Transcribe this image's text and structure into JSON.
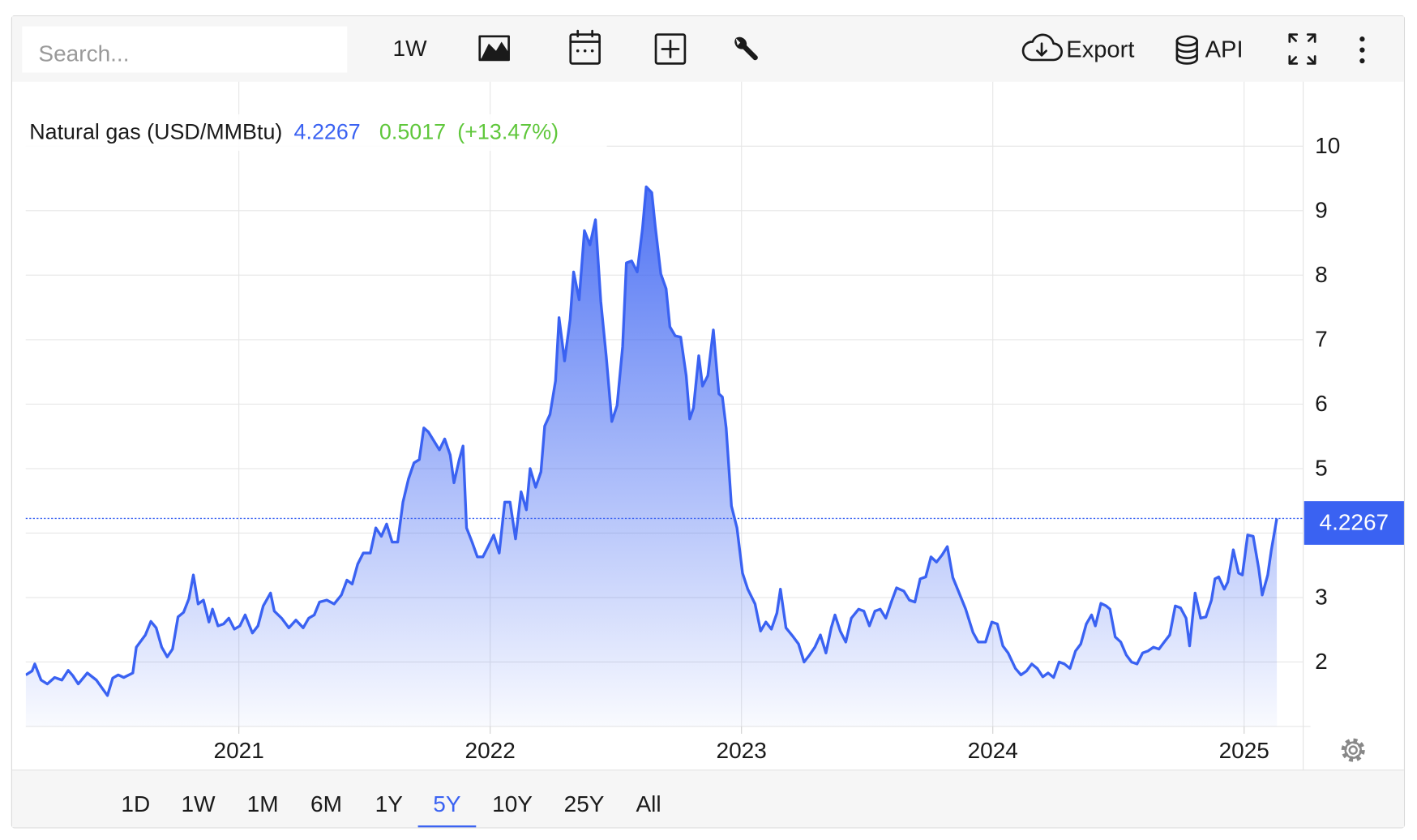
{
  "toolbar": {
    "search_placeholder": "Search...",
    "interval": "1W",
    "export": "Export",
    "api": "API"
  },
  "range_bar": {
    "ranges": [
      "1D",
      "1W",
      "1M",
      "6M",
      "1Y",
      "5Y",
      "10Y",
      "25Y",
      "All"
    ],
    "active_range": "5Y"
  },
  "chart_data": {
    "type": "area",
    "series": [
      {
        "name": "Natural gas (USD/MMBtu)",
        "color": "#3a62f2",
        "x": [
          2020.152,
          2020.177,
          2020.188,
          2020.213,
          2020.238,
          2020.267,
          2020.296,
          2020.321,
          2020.339,
          2020.361,
          2020.397,
          2020.433,
          2020.477,
          2020.498,
          2020.52,
          2020.542,
          2020.578,
          2020.592,
          2020.628,
          2020.65,
          2020.671,
          2020.693,
          2020.715,
          2020.736,
          2020.758,
          2020.78,
          2020.801,
          2020.819,
          2020.838,
          2020.859,
          2020.881,
          2020.895,
          2020.917,
          2020.939,
          2020.96,
          2020.982,
          2021.004,
          2021.025,
          2021.054,
          2021.076,
          2021.097,
          2021.126,
          2021.141,
          2021.17,
          2021.199,
          2021.227,
          2021.256,
          2021.278,
          2021.3,
          2021.321,
          2021.35,
          2021.379,
          2021.408,
          2021.43,
          2021.451,
          2021.473,
          2021.495,
          2021.523,
          2021.545,
          2021.567,
          2021.588,
          2021.61,
          2021.632,
          2021.653,
          2021.675,
          2021.697,
          2021.718,
          2021.736,
          2021.754,
          2021.776,
          2021.798,
          2021.819,
          2021.841,
          2021.856,
          2021.877,
          2021.892,
          2021.906,
          2021.928,
          2021.949,
          2021.971,
          2021.993,
          2022.014,
          2022.036,
          2022.058,
          2022.079,
          2022.101,
          2022.123,
          2022.144,
          2022.159,
          2022.181,
          2022.202,
          2022.217,
          2022.238,
          2022.26,
          2022.274,
          2022.296,
          2022.318,
          2022.332,
          2022.354,
          2022.375,
          2022.397,
          2022.419,
          2022.44,
          2022.462,
          2022.484,
          2022.505,
          2022.527,
          2022.542,
          2022.563,
          2022.585,
          2022.606,
          2022.621,
          2022.643,
          2022.657,
          2022.679,
          2022.7,
          2022.715,
          2022.736,
          2022.758,
          2022.78,
          2022.794,
          2022.809,
          2022.83,
          2022.845,
          2022.866,
          2022.888,
          2022.91,
          2022.924,
          2022.939,
          2022.96,
          2022.982,
          2023.004,
          2023.025,
          2023.054,
          2023.076,
          2023.097,
          2023.119,
          2023.141,
          2023.155,
          2023.177,
          2023.206,
          2023.227,
          2023.249,
          2023.271,
          2023.292,
          2023.314,
          2023.336,
          2023.357,
          2023.372,
          2023.393,
          2023.415,
          2023.437,
          2023.466,
          2023.487,
          2023.509,
          2023.531,
          2023.552,
          2023.574,
          2023.596,
          2023.617,
          2023.646,
          2023.668,
          2023.69,
          2023.711,
          2023.733,
          2023.754,
          2023.776,
          2023.798,
          2023.819,
          2023.841,
          2023.863,
          2023.892,
          2023.921,
          2023.942,
          2023.971,
          2023.996,
          2024.018,
          2024.04,
          2024.061,
          2024.09,
          2024.112,
          2024.134,
          2024.155,
          2024.177,
          2024.199,
          2024.22,
          2024.242,
          2024.264,
          2024.285,
          2024.307,
          2024.329,
          2024.35,
          2024.372,
          2024.393,
          2024.408,
          2024.43,
          2024.451,
          2024.466,
          2024.487,
          2024.509,
          2024.531,
          2024.552,
          2024.574,
          2024.596,
          2024.617,
          2024.639,
          2024.661,
          2024.682,
          2024.704,
          2024.726,
          2024.747,
          2024.769,
          2024.783,
          2024.805,
          2024.827,
          2024.848,
          2024.87,
          2024.884,
          2024.899,
          2024.921,
          2024.935,
          2024.957,
          2024.978,
          2024.993,
          2025.014,
          2025.036,
          2025.058,
          2025.072,
          2025.094,
          2025.108,
          2025.13
        ],
        "values": [
          1.8,
          1.86,
          1.97,
          1.72,
          1.66,
          1.76,
          1.72,
          1.87,
          1.79,
          1.66,
          1.83,
          1.72,
          1.48,
          1.75,
          1.8,
          1.76,
          1.83,
          2.23,
          2.42,
          2.63,
          2.53,
          2.23,
          2.08,
          2.2,
          2.7,
          2.77,
          2.98,
          3.35,
          2.9,
          2.96,
          2.62,
          2.82,
          2.56,
          2.59,
          2.68,
          2.51,
          2.56,
          2.73,
          2.45,
          2.56,
          2.87,
          3.07,
          2.79,
          2.68,
          2.53,
          2.65,
          2.53,
          2.68,
          2.73,
          2.93,
          2.96,
          2.9,
          3.04,
          3.27,
          3.21,
          3.52,
          3.69,
          3.69,
          4.08,
          3.95,
          4.14,
          3.86,
          3.86,
          4.48,
          4.84,
          5.09,
          5.14,
          5.63,
          5.57,
          5.43,
          5.29,
          5.46,
          5.21,
          4.78,
          5.14,
          5.35,
          4.08,
          3.86,
          3.63,
          3.63,
          3.8,
          3.97,
          3.69,
          4.48,
          4.48,
          3.91,
          4.64,
          4.36,
          5.0,
          4.71,
          4.95,
          5.66,
          5.84,
          6.36,
          7.34,
          6.67,
          7.31,
          8.05,
          7.62,
          8.69,
          8.47,
          8.86,
          7.6,
          6.73,
          5.73,
          5.98,
          6.89,
          8.19,
          8.22,
          8.05,
          8.72,
          9.37,
          9.28,
          8.75,
          8.02,
          7.79,
          7.2,
          7.06,
          7.04,
          6.44,
          5.77,
          5.94,
          6.75,
          6.28,
          6.44,
          7.15,
          6.16,
          6.11,
          5.63,
          4.42,
          4.08,
          3.38,
          3.13,
          2.9,
          2.48,
          2.62,
          2.51,
          2.76,
          3.13,
          2.53,
          2.39,
          2.28,
          2.0,
          2.11,
          2.23,
          2.42,
          2.14,
          2.53,
          2.73,
          2.48,
          2.31,
          2.68,
          2.82,
          2.79,
          2.56,
          2.79,
          2.82,
          2.68,
          2.93,
          3.15,
          3.1,
          2.96,
          2.93,
          3.29,
          3.32,
          3.63,
          3.55,
          3.66,
          3.79,
          3.31,
          3.1,
          2.82,
          2.46,
          2.31,
          2.31,
          2.62,
          2.59,
          2.25,
          2.14,
          1.9,
          1.8,
          1.86,
          1.97,
          1.9,
          1.77,
          1.83,
          1.76,
          2.0,
          1.97,
          1.9,
          2.17,
          2.28,
          2.59,
          2.73,
          2.56,
          2.91,
          2.87,
          2.82,
          2.39,
          2.31,
          2.11,
          2.0,
          1.97,
          2.14,
          2.17,
          2.23,
          2.2,
          2.31,
          2.42,
          2.87,
          2.84,
          2.68,
          2.25,
          3.07,
          2.68,
          2.7,
          2.96,
          3.29,
          3.32,
          3.13,
          3.24,
          3.74,
          3.38,
          3.35,
          3.97,
          3.95,
          3.45,
          3.04,
          3.35,
          3.73,
          4.2267
        ]
      }
    ],
    "change": 0.5017,
    "change_color": "#5fc73b",
    "change_percent_label": "(+13.47%)",
    "xlim": [
      2020.152,
      2025.235
    ],
    "xticks": [
      2021,
      2022,
      2023,
      2024,
      2025
    ],
    "ylim": [
      1,
      11
    ],
    "yticks": [
      2,
      3,
      4,
      5,
      6,
      7,
      8,
      9,
      10
    ],
    "grid": true
  }
}
